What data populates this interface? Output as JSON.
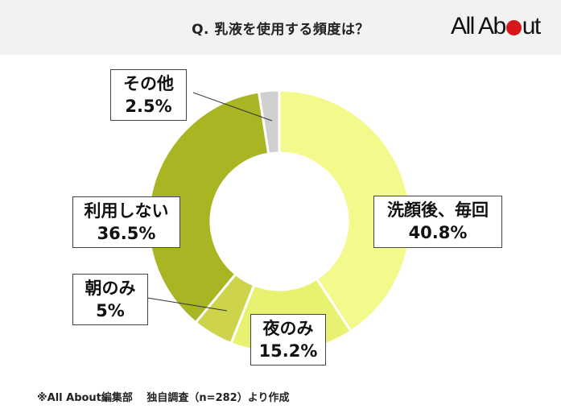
{
  "header": {
    "title": "Q. 乳液を使用する頻度は？",
    "logo_pre": "All Ab",
    "logo_post": "ut"
  },
  "colors": {
    "brand_red": "#d7161b",
    "header_bg": "#f2f2f2"
  },
  "chart_data": {
    "type": "pie",
    "subtype": "donut",
    "title": "Q. 乳液を使用する頻度は？",
    "categories": [
      "洗顔後、毎回",
      "夜のみ",
      "朝のみ",
      "利用しない",
      "その他"
    ],
    "values": [
      40.8,
      15.2,
      5,
      36.5,
      2.5
    ],
    "unit": "%",
    "colors": [
      "#f3f98a",
      "#e9f170",
      "#cdd34a",
      "#a9b523",
      "#cfcfcf"
    ],
    "start_angle": "12 o'clock, clockwise",
    "legend": "none (callout labels)",
    "n": 282
  },
  "labels": [
    {
      "name": "洗顔後、毎回",
      "value": "40.8%"
    },
    {
      "name": "夜のみ",
      "value": "15.2%"
    },
    {
      "name": "朝のみ",
      "value": "5%"
    },
    {
      "name": "利用しない",
      "value": "36.5%"
    },
    {
      "name": "その他",
      "value": "2.5%"
    }
  ],
  "footnote": "※All About編集部　 独自調査（n=282）より作成"
}
